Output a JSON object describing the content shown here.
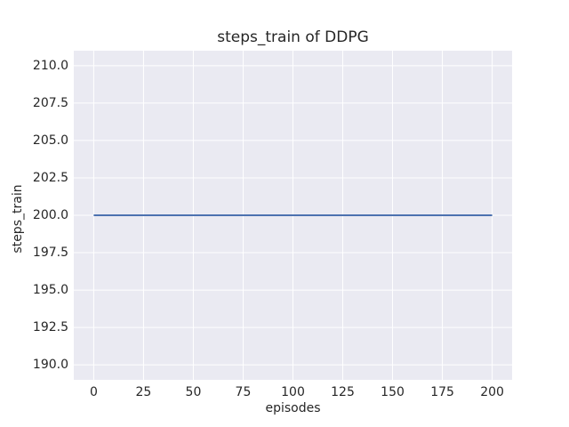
{
  "chart_data": {
    "type": "line",
    "title": "steps_train of DDPG",
    "xlabel": "episodes",
    "ylabel": "steps_train",
    "xlim": [
      -10,
      210
    ],
    "ylim": [
      189,
      211
    ],
    "xticks": [
      0,
      25,
      50,
      75,
      100,
      125,
      150,
      175,
      200
    ],
    "yticks": [
      190.0,
      192.5,
      195.0,
      197.5,
      200.0,
      202.5,
      205.0,
      207.5,
      210.0
    ],
    "ytick_decimals": 1,
    "grid": true,
    "legend": "none",
    "series": [
      {
        "name": "steps_train",
        "color": "#4c72b0",
        "x": [
          0,
          200
        ],
        "y": [
          200,
          200
        ]
      }
    ],
    "colors": {
      "figure_background": "#ffffff",
      "axes_background": "#eaeaf2",
      "gridline": "#ffffff",
      "text": "#262626"
    }
  }
}
